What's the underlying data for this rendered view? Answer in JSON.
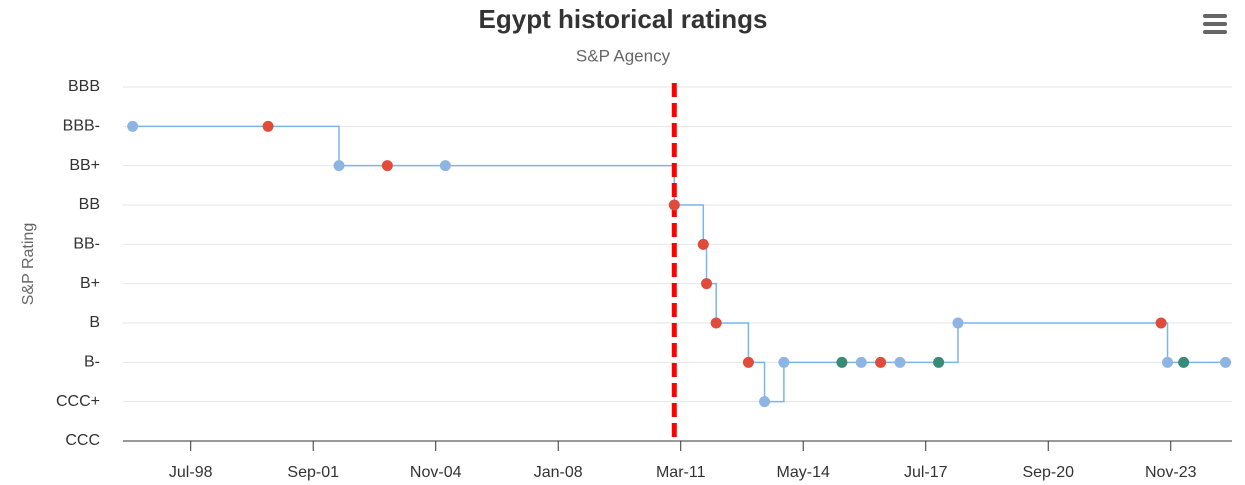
{
  "chart_data": {
    "type": "step",
    "title": "Egypt historical ratings",
    "subtitle": "S&P Agency",
    "y_axis_label": "S&P Rating",
    "x": [
      "1997-01",
      "2000-07",
      "2002-05",
      "2003-08",
      "2005-02",
      "2011-01",
      "2011-10",
      "2011-11",
      "2012-02",
      "2012-12",
      "2013-05",
      "2013-11",
      "2015-05",
      "2015-11",
      "2016-05",
      "2016-11",
      "2017-11",
      "2018-05",
      "2023-08",
      "2023-10",
      "2024-03",
      "2025-04"
    ],
    "values": [
      8,
      8,
      7,
      7,
      7,
      6,
      5,
      4,
      3,
      2,
      1,
      2,
      2,
      2,
      2,
      2,
      2,
      3,
      3,
      2,
      2,
      2
    ],
    "point_colors": [
      "#8db4e3",
      "#e04b3a",
      "#8db4e3",
      "#e04b3a",
      "#8db4e3",
      "#e04b3a",
      "#e04b3a",
      "#e04b3a",
      "#e04b3a",
      "#e04b3a",
      "#8db4e3",
      "#8db4e3",
      "#3a8a78",
      "#8db4e3",
      "#e04b3a",
      "#8db4e3",
      "#3a8a78",
      "#8db4e3",
      "#e04b3a",
      "#8db4e3",
      "#3a8a78",
      "#8db4e3"
    ],
    "line_color": "#7cb5ec",
    "xlim": [
      "1996-10",
      "2025-06"
    ],
    "xticks": [
      {
        "value": "1998-07",
        "label": "Jul-98"
      },
      {
        "value": "2001-09",
        "label": "Sep-01"
      },
      {
        "value": "2004-11",
        "label": "Nov-04"
      },
      {
        "value": "2008-01",
        "label": "Jan-08"
      },
      {
        "value": "2011-03",
        "label": "Mar-11"
      },
      {
        "value": "2014-05",
        "label": "May-14"
      },
      {
        "value": "2017-07",
        "label": "Jul-17"
      },
      {
        "value": "2020-09",
        "label": "Sep-20"
      },
      {
        "value": "2023-11",
        "label": "Nov-23"
      }
    ],
    "ylim": [
      0,
      9
    ],
    "yticks": [
      {
        "value": 0,
        "label": "CCC"
      },
      {
        "value": 1,
        "label": "CCC+"
      },
      {
        "value": 2,
        "label": "B-"
      },
      {
        "value": 3,
        "label": "B"
      },
      {
        "value": 4,
        "label": "B+"
      },
      {
        "value": 5,
        "label": "BB-"
      },
      {
        "value": 6,
        "label": "BB"
      },
      {
        "value": 7,
        "label": "BB+"
      },
      {
        "value": 8,
        "label": "BBB-"
      },
      {
        "value": 9,
        "label": "BBB"
      }
    ],
    "grid": true,
    "reference_line": {
      "x": "2011-01",
      "color": "#ff0000"
    }
  }
}
